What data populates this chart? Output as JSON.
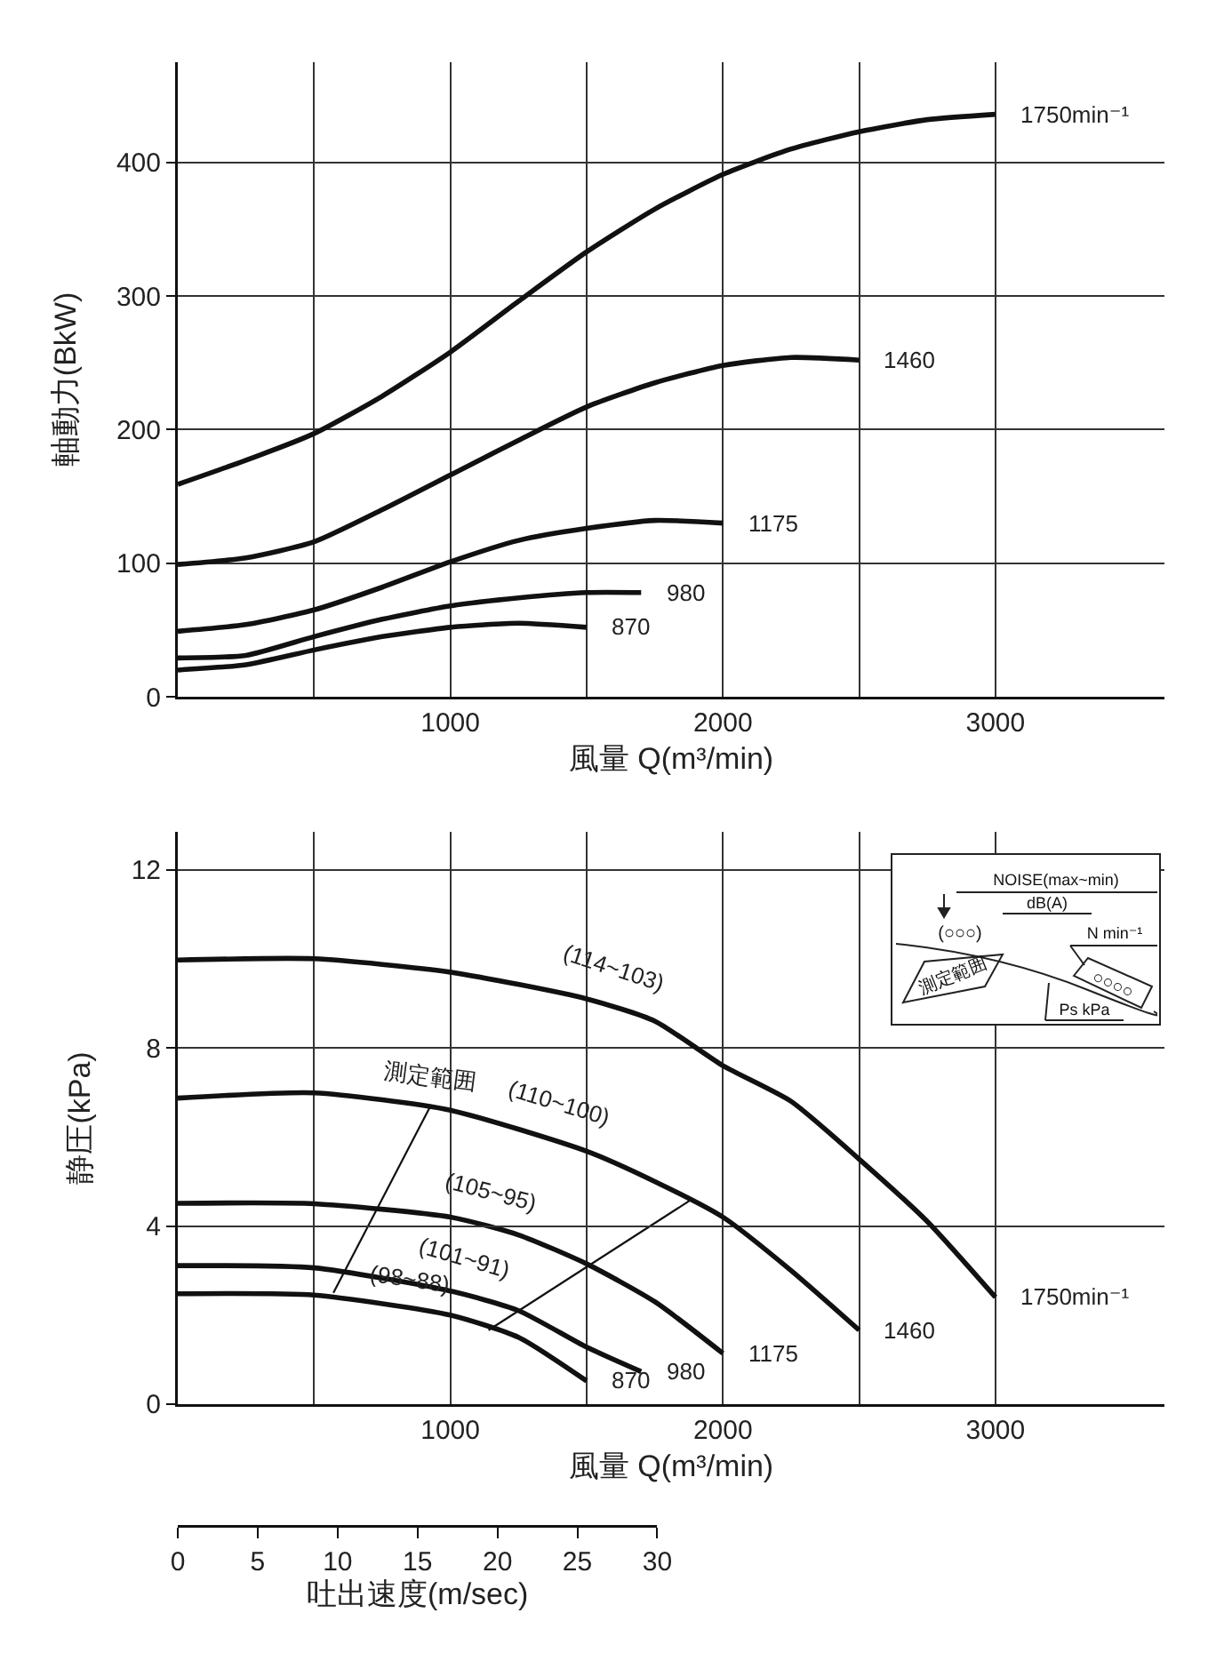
{
  "chart_data": [
    {
      "type": "line",
      "xlabel": "風量 Q(m³/min)",
      "ylabel": "軸動力(BkW)",
      "grid": true,
      "xlim": [
        0,
        3620
      ],
      "xticks": [
        {
          "value": 500,
          "label": null
        },
        1000,
        {
          "value": 1500,
          "label": null
        },
        2000,
        {
          "value": 2500,
          "label": null
        },
        3000
      ],
      "ylim": [
        0,
        475
      ],
      "yticks": [
        0,
        100,
        200,
        300,
        400
      ],
      "series": [
        {
          "name": "1750min⁻¹",
          "color": "#111111",
          "x": [
            0,
            250,
            500,
            750,
            1000,
            1250,
            1500,
            1750,
            2000,
            2250,
            2500,
            2750,
            3000
          ],
          "values": [
            159,
            177,
            197,
            225,
            258,
            296,
            333,
            365,
            391,
            410,
            423,
            432,
            436
          ]
        },
        {
          "name": "1460",
          "color": "#111111",
          "x": [
            0,
            250,
            500,
            750,
            1000,
            1250,
            1500,
            1750,
            2000,
            2250,
            2500
          ],
          "values": [
            99,
            104,
            116,
            140,
            166,
            192,
            217,
            235,
            248,
            254,
            252
          ]
        },
        {
          "name": "1175",
          "color": "#111111",
          "x": [
            0,
            250,
            500,
            750,
            1000,
            1250,
            1500,
            1750,
            2000
          ],
          "values": [
            49,
            54,
            65,
            82,
            101,
            117,
            126,
            132,
            130
          ]
        },
        {
          "name": "980",
          "color": "#111111",
          "x": [
            0,
            250,
            500,
            750,
            1000,
            1250,
            1500,
            1700
          ],
          "values": [
            29,
            31,
            45,
            58,
            68,
            74,
            78,
            78
          ]
        },
        {
          "name": "870",
          "color": "#111111",
          "x": [
            0,
            250,
            500,
            750,
            1000,
            1250,
            1500
          ],
          "values": [
            20,
            24,
            35,
            45,
            52,
            55,
            52
          ]
        }
      ]
    },
    {
      "type": "line",
      "xlabel": "風量 Q(m³/min)",
      "ylabel": "静圧(kPa)",
      "x2label": "吐出速度(m/sec)",
      "grid": true,
      "xlim": [
        0,
        3620
      ],
      "xticks": [
        {
          "value": 500,
          "label": null
        },
        1000,
        {
          "value": 1500,
          "label": null
        },
        2000,
        {
          "value": 2500,
          "label": null
        },
        3000
      ],
      "ylim": [
        0,
        12.85
      ],
      "yticks": [
        0,
        4,
        8,
        12
      ],
      "x2lim": [
        0,
        30
      ],
      "x2ticks": [
        0,
        5,
        10,
        15,
        20,
        25,
        30
      ],
      "series": [
        {
          "name": "1750min⁻¹",
          "color": "#111111",
          "x": [
            0,
            500,
            1000,
            1500,
            1750,
            2000,
            2250,
            2500,
            2750,
            3000
          ],
          "values": [
            9.97,
            10.0,
            9.7,
            9.1,
            8.6,
            7.6,
            6.8,
            5.5,
            4.1,
            2.4
          ]
        },
        {
          "name": "1460",
          "color": "#111111",
          "x": [
            0,
            500,
            1000,
            1500,
            1750,
            2000,
            2250,
            2500
          ],
          "values": [
            6.87,
            6.99,
            6.6,
            5.68,
            5.0,
            4.2,
            3.0,
            1.66
          ]
        },
        {
          "name": "1175",
          "color": "#111111",
          "x": [
            0,
            500,
            1000,
            1250,
            1500,
            1750,
            2000
          ],
          "values": [
            4.51,
            4.5,
            4.2,
            3.8,
            3.15,
            2.3,
            1.14
          ]
        },
        {
          "name": "980",
          "color": "#111111",
          "x": [
            0,
            500,
            1000,
            1250,
            1500,
            1700
          ],
          "values": [
            3.11,
            3.06,
            2.54,
            2.1,
            1.28,
            0.73
          ]
        },
        {
          "name": "870",
          "color": "#111111",
          "x": [
            0,
            500,
            1000,
            1250,
            1500
          ],
          "values": [
            2.48,
            2.45,
            2.0,
            1.5,
            0.52
          ]
        },
        {
          "color": "#111111",
          "x": [
            571,
            926
          ],
          "values": [
            2.5,
            6.68
          ]
        },
        {
          "color": "#111111",
          "x": [
            1140,
            1886
          ],
          "values": [
            1.66,
            4.6
          ]
        }
      ],
      "annotations": [
        {
          "text": "(114~103)",
          "x": 1600,
          "y": 8.9
        },
        {
          "text": "(110~100)",
          "x": 1400,
          "y": 5.86
        },
        {
          "text": "測定範囲",
          "x": 926,
          "y": 6.68
        },
        {
          "text": "(105~95)",
          "x": 1150,
          "y": 3.97
        },
        {
          "text": "(101~91)",
          "x": 1050,
          "y": 2.45
        },
        {
          "text": "(98~88)",
          "x": 850,
          "y": 2.15
        },
        "NOISE(max~min)",
        "dB(A)",
        "(○○○)",
        "N min⁻¹",
        "○○○○",
        "Ps kPa",
        "測定範囲"
      ]
    }
  ]
}
